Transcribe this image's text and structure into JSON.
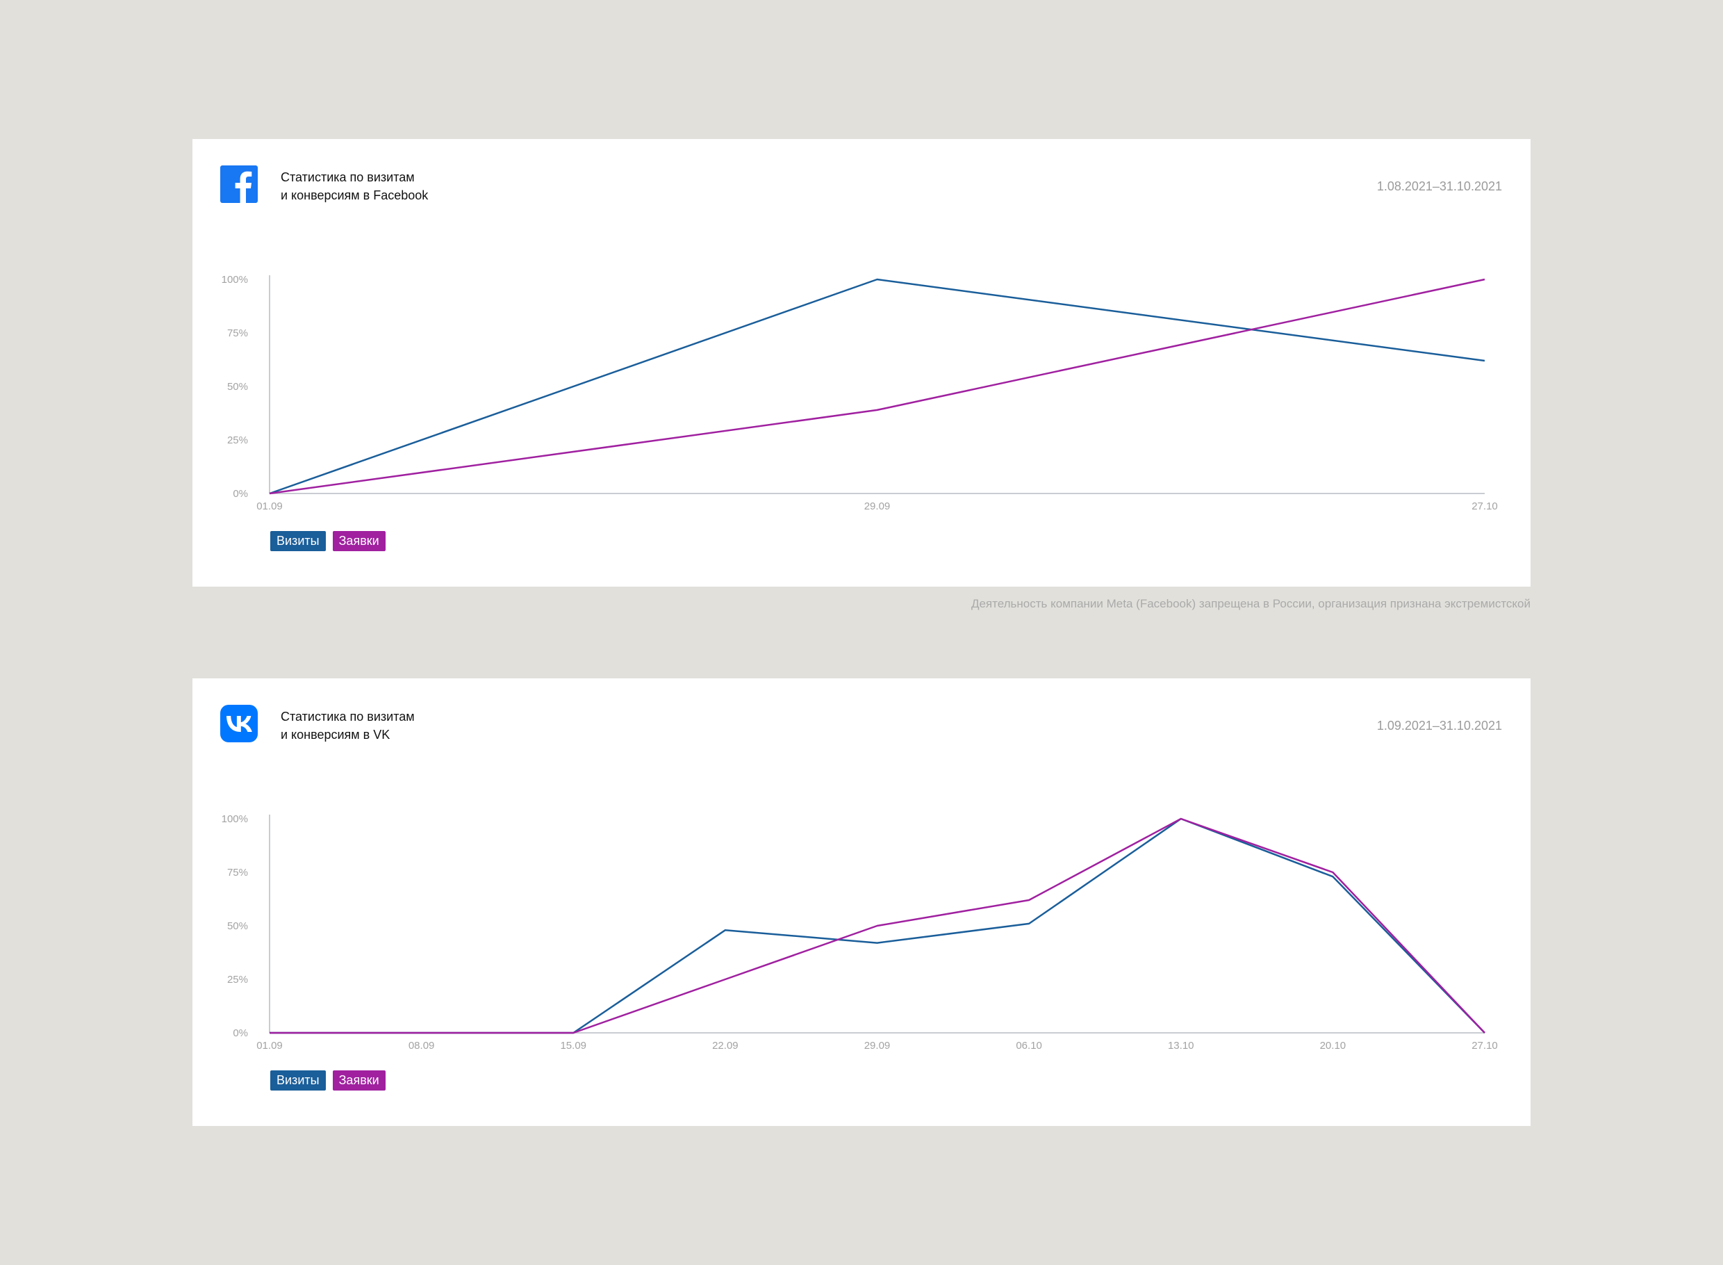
{
  "colors": {
    "visits": "#1a5e9a",
    "leads": "#a020a0",
    "fb_blue": "#1877f2",
    "vk_blue": "#0077ff",
    "axis": "#c9ccd2"
  },
  "legend": {
    "visits": "Визиты",
    "leads": "Заявки"
  },
  "disclaimer": "Деятельность компании Meta (Facebook) запрещена в России, организация признана экстремистской",
  "charts": {
    "fb": {
      "logo_icon": "facebook-icon",
      "title_line1": "Статистика по визитам",
      "title_line2": "и конверсиям в Facebook",
      "period": "1.08.2021–31.10.2021"
    },
    "vk": {
      "logo_icon": "vk-icon",
      "title_line1": "Статистика по визитам",
      "title_line2": "и конверсиям в VK",
      "period": "1.09.2021–31.10.2021"
    }
  },
  "chart_data": [
    {
      "id": "fb",
      "type": "line",
      "categories": [
        "01.09",
        "29.09",
        "27.10"
      ],
      "y_ticks": [
        "0%",
        "25%",
        "50%",
        "75%",
        "100%"
      ],
      "ylim": [
        0,
        100
      ],
      "series": [
        {
          "name": "Визиты",
          "key": "visits",
          "values": [
            0,
            100,
            62
          ]
        },
        {
          "name": "Заявки",
          "key": "leads",
          "values": [
            0,
            39,
            100
          ]
        }
      ]
    },
    {
      "id": "vk",
      "type": "line",
      "categories": [
        "01.09",
        "08.09",
        "15.09",
        "22.09",
        "29.09",
        "06.10",
        "13.10",
        "20.10",
        "27.10"
      ],
      "y_ticks": [
        "0%",
        "25%",
        "50%",
        "75%",
        "100%"
      ],
      "ylim": [
        0,
        100
      ],
      "series": [
        {
          "name": "Визиты",
          "key": "visits",
          "values": [
            0,
            0,
            0,
            48,
            42,
            51,
            100,
            73,
            0
          ]
        },
        {
          "name": "Заявки",
          "key": "leads",
          "values": [
            0,
            0,
            0,
            25,
            50,
            62,
            100,
            75,
            0
          ]
        }
      ]
    }
  ]
}
